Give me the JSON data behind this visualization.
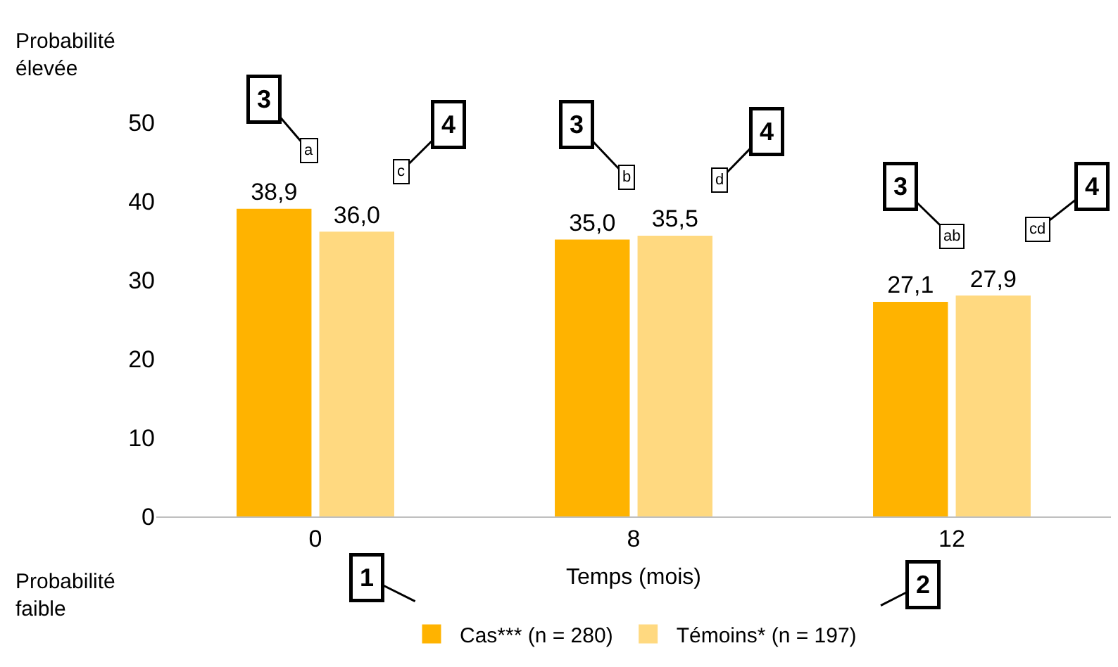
{
  "chart_data": {
    "type": "bar",
    "xlabel": "Temps (mois)",
    "categories": [
      "0",
      "8",
      "12"
    ],
    "series": [
      {
        "name": "Cas*** (n = 280)",
        "color": "#ffb300",
        "values": [
          38.9,
          35.0,
          27.1
        ],
        "value_labels": [
          "38,9",
          "35,0",
          "27,1"
        ]
      },
      {
        "name": "Témoins* (n = 197)",
        "color": "#ffd980",
        "values": [
          36.0,
          35.5,
          27.9
        ],
        "value_labels": [
          "36,0",
          "35,5",
          "27,9"
        ]
      }
    ],
    "ylim": [
      0,
      50
    ],
    "yticks": [
      0,
      10,
      20,
      30,
      40,
      50
    ],
    "grid": false,
    "legend": "bottom",
    "annotations": [
      "Probabilité élevée",
      "Probabilité faible",
      "3",
      "a",
      "4",
      "c",
      "3",
      "b",
      "4",
      "d",
      "3",
      "ab",
      "4",
      "cd",
      "1",
      "2"
    ]
  }
}
